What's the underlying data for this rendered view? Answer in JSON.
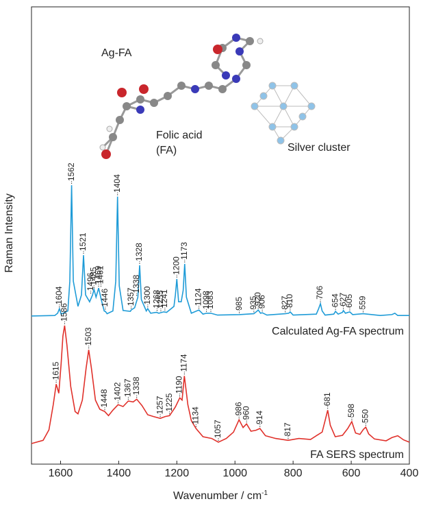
{
  "chart_data": {
    "type": "line",
    "y_label": "Raman Intensity",
    "x_label": "Wavenumber / cm",
    "x_label_superscript": "-1",
    "inset_title": "Ag-FA",
    "molecule_label": [
      "Folic acid",
      "(FA)"
    ],
    "cluster_label": "Silver cluster",
    "xlim": [
      1700,
      400
    ],
    "ylim": [
      0,
      100
    ],
    "xticks": [
      1600,
      1400,
      1200,
      1000,
      800,
      600,
      400
    ],
    "series": [
      {
        "name": "Calculated Ag-FA spectrum",
        "color": "#1e9bd7",
        "x": [
          1700,
          1620,
          1610,
          1604,
          1598,
          1575,
          1568,
          1562,
          1556,
          1540,
          1528,
          1521,
          1514,
          1500,
          1490,
          1485,
          1478,
          1469,
          1460,
          1450,
          1446,
          1440,
          1420,
          1410,
          1404,
          1398,
          1385,
          1360,
          1357,
          1345,
          1334,
          1328,
          1322,
          1305,
          1300,
          1290,
          1270,
          1262,
          1245,
          1235,
          1210,
          1205,
          1200,
          1194,
          1185,
          1178,
          1173,
          1167,
          1150,
          1124,
          1110,
          1098,
          1083,
          1060,
          985,
          935,
          925,
          920,
          912,
          906,
          890,
          827,
          815,
          810,
          800,
          720,
          712,
          706,
          700,
          690,
          660,
          654,
          645,
          630,
          627,
          620,
          605,
          595,
          559,
          500,
          460,
          450,
          440,
          400
        ],
        "values": [
          32.4,
          32.5,
          33.0,
          34.0,
          32.8,
          33.5,
          40,
          61.0,
          40,
          34.5,
          37,
          45.7,
          37,
          35.5,
          37,
          38.2,
          36.5,
          38.5,
          36,
          33.5,
          33.4,
          32.9,
          33.5,
          40,
          58.5,
          39,
          33.6,
          33.4,
          33.7,
          34.2,
          36.5,
          43.5,
          36,
          33.5,
          34.0,
          33.0,
          33.2,
          33.0,
          33.3,
          33.2,
          34.5,
          37,
          40.5,
          35.5,
          35.5,
          38,
          43.8,
          36.5,
          33,
          33.7,
          32.8,
          33.0,
          33.0,
          32.6,
          32.7,
          32.9,
          33.4,
          33.7,
          33.0,
          33.1,
          32.6,
          32.9,
          33.0,
          33.3,
          32.6,
          32.8,
          34,
          35.1,
          33.5,
          32.6,
          32.8,
          33.4,
          32.8,
          33.2,
          33.6,
          33.0,
          33.3,
          32.7,
          32.9,
          32.5,
          32.7,
          33.0,
          32.5,
          32.5
        ],
        "peak_labels": [
          1604,
          1562,
          1521,
          1496,
          1485,
          1469,
          1461,
          1446,
          1404,
          1357,
          1338,
          1328,
          1300,
          1268,
          1255,
          1241,
          1200,
          1173,
          1124,
          1098,
          1083,
          985,
          935,
          920,
          906,
          827,
          810,
          706,
          654,
          627,
          605,
          559
        ]
      },
      {
        "name": "FA SERS spectrum",
        "color": "#e0302a",
        "x": [
          1700,
          1660,
          1640,
          1625,
          1615,
          1606,
          1598,
          1592,
          1586,
          1578,
          1565,
          1550,
          1540,
          1525,
          1512,
          1503,
          1494,
          1480,
          1465,
          1448,
          1435,
          1420,
          1402,
          1385,
          1367,
          1350,
          1338,
          1320,
          1300,
          1280,
          1257,
          1240,
          1225,
          1205,
          1190,
          1182,
          1174,
          1162,
          1150,
          1134,
          1110,
          1080,
          1057,
          1030,
          1005,
          986,
          972,
          960,
          945,
          928,
          914,
          895,
          860,
          817,
          780,
          740,
          720,
          700,
          690,
          681,
          672,
          655,
          630,
          612,
          598,
          585,
          570,
          558,
          550,
          540,
          520,
          480,
          460,
          440,
          420,
          400
        ],
        "values": [
          4.5,
          5.2,
          7.5,
          13,
          17.5,
          15.5,
          22,
          28,
          30.3,
          26,
          17,
          11.5,
          11,
          14,
          21,
          25.0,
          21,
          14,
          12,
          11.5,
          10.6,
          11.8,
          13.0,
          12.6,
          13.8,
          13.6,
          14.2,
          12.8,
          10.8,
          10.4,
          10.0,
          10.4,
          10.6,
          12.5,
          14.5,
          14.0,
          19.3,
          13,
          9.5,
          7.8,
          6.0,
          5.6,
          4.8,
          5.6,
          7.0,
          9.7,
          8.0,
          8.8,
          7.2,
          7.4,
          7.8,
          6.2,
          5.6,
          5.2,
          5.6,
          5.4,
          6.2,
          7.0,
          9.5,
          11.8,
          8.5,
          6.0,
          6.3,
          7.8,
          9.3,
          6.8,
          6.5,
          7.6,
          8.1,
          6.6,
          5.5,
          5.1,
          5.8,
          6.2,
          5.3,
          4.8
        ],
        "peak_labels": [
          1615,
          1586,
          1503,
          1448,
          1402,
          1367,
          1338,
          1257,
          1225,
          1190,
          1174,
          1134,
          1057,
          986,
          960,
          914,
          817,
          681,
          598,
          550
        ]
      }
    ]
  }
}
